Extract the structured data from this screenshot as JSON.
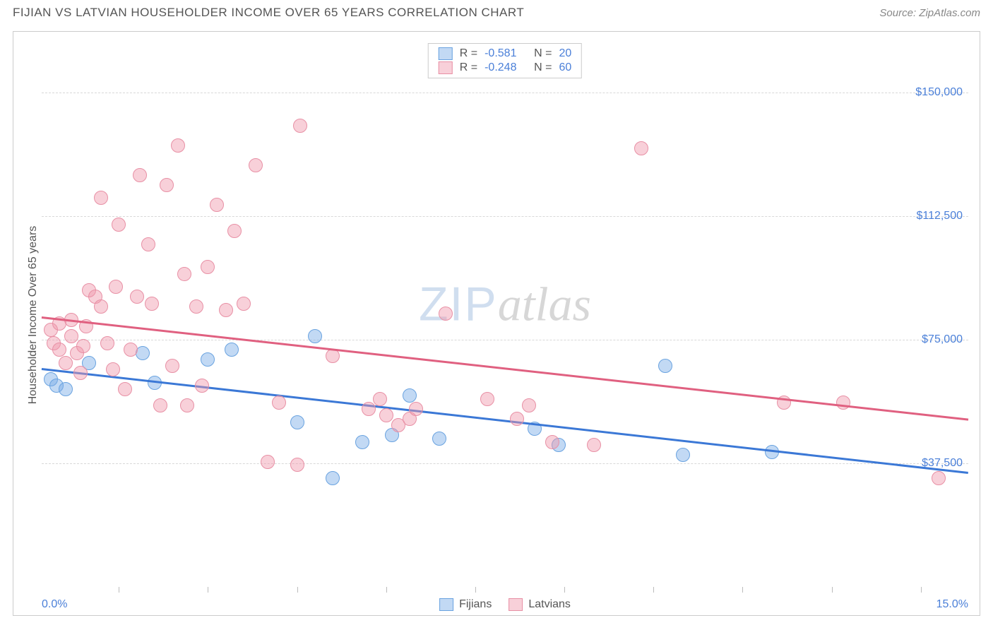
{
  "header": {
    "title": "FIJIAN VS LATVIAN HOUSEHOLDER INCOME OVER 65 YEARS CORRELATION CHART",
    "source_prefix": "Source: ",
    "source_name": "ZipAtlas.com"
  },
  "chart": {
    "type": "scatter",
    "background_color": "#ffffff",
    "border_color": "#cccccc",
    "grid_color": "#d8d8d8",
    "text_color": "#555555",
    "value_color": "#4a7fd8",
    "y_axis_label": "Householder Income Over 65 years",
    "y_min": 0,
    "y_max": 165000,
    "y_ticks": [
      {
        "value": 37500,
        "label": "$37,500"
      },
      {
        "value": 75000,
        "label": "$75,000"
      },
      {
        "value": 112500,
        "label": "$112,500"
      },
      {
        "value": 150000,
        "label": "$150,000"
      }
    ],
    "x_min": -0.3,
    "x_max": 15.3,
    "x_left_label": "0.0%",
    "x_right_label": "15.0%",
    "x_tick_positions": [
      1.0,
      2.5,
      4.0,
      5.5,
      7.0,
      8.5,
      10.0,
      11.5,
      13.0,
      14.5
    ],
    "watermark": {
      "zip": "ZIP",
      "atlas": "atlas"
    },
    "series": [
      {
        "name": "Fijians",
        "fill_color": "rgba(120,170,230,0.45)",
        "stroke_color": "#6aa3e0",
        "line_color": "#3b78d6",
        "marker_radius": 10,
        "r_value": "-0.581",
        "n_value": "20",
        "trend": {
          "x1": -0.3,
          "y1": 66500,
          "x2": 15.3,
          "y2": 35000
        },
        "points": [
          {
            "x": -0.15,
            "y": 63000
          },
          {
            "x": -0.05,
            "y": 61000
          },
          {
            "x": 0.1,
            "y": 60000
          },
          {
            "x": 0.5,
            "y": 68000
          },
          {
            "x": 1.4,
            "y": 71000
          },
          {
            "x": 1.6,
            "y": 62000
          },
          {
            "x": 2.5,
            "y": 69000
          },
          {
            "x": 2.9,
            "y": 72000
          },
          {
            "x": 4.3,
            "y": 76000
          },
          {
            "x": 4.6,
            "y": 33000
          },
          {
            "x": 5.1,
            "y": 44000
          },
          {
            "x": 5.6,
            "y": 46000
          },
          {
            "x": 5.9,
            "y": 58000
          },
          {
            "x": 6.4,
            "y": 45000
          },
          {
            "x": 8.0,
            "y": 48000
          },
          {
            "x": 8.4,
            "y": 43000
          },
          {
            "x": 10.2,
            "y": 67000
          },
          {
            "x": 10.5,
            "y": 40000
          },
          {
            "x": 12.0,
            "y": 41000
          },
          {
            "x": 4.0,
            "y": 50000
          }
        ]
      },
      {
        "name": "Latvians",
        "fill_color": "rgba(240,150,170,0.45)",
        "stroke_color": "#e890a5",
        "line_color": "#e06080",
        "marker_radius": 10,
        "r_value": "-0.248",
        "n_value": "60",
        "trend": {
          "x1": -0.3,
          "y1": 82000,
          "x2": 15.3,
          "y2": 51000
        },
        "points": [
          {
            "x": -0.15,
            "y": 78000
          },
          {
            "x": -0.1,
            "y": 74000
          },
          {
            "x": 0.0,
            "y": 80000
          },
          {
            "x": 0.0,
            "y": 72000
          },
          {
            "x": 0.1,
            "y": 68000
          },
          {
            "x": 0.2,
            "y": 76000
          },
          {
            "x": 0.2,
            "y": 81000
          },
          {
            "x": 0.3,
            "y": 71000
          },
          {
            "x": 0.35,
            "y": 65000
          },
          {
            "x": 0.4,
            "y": 73000
          },
          {
            "x": 0.45,
            "y": 79000
          },
          {
            "x": 0.5,
            "y": 90000
          },
          {
            "x": 0.6,
            "y": 88000
          },
          {
            "x": 0.7,
            "y": 118000
          },
          {
            "x": 0.7,
            "y": 85000
          },
          {
            "x": 0.8,
            "y": 74000
          },
          {
            "x": 0.9,
            "y": 66000
          },
          {
            "x": 0.95,
            "y": 91000
          },
          {
            "x": 1.0,
            "y": 110000
          },
          {
            "x": 1.1,
            "y": 60000
          },
          {
            "x": 1.2,
            "y": 72000
          },
          {
            "x": 1.3,
            "y": 88000
          },
          {
            "x": 1.35,
            "y": 125000
          },
          {
            "x": 1.5,
            "y": 104000
          },
          {
            "x": 1.55,
            "y": 86000
          },
          {
            "x": 1.7,
            "y": 55000
          },
          {
            "x": 1.8,
            "y": 122000
          },
          {
            "x": 1.9,
            "y": 67000
          },
          {
            "x": 2.0,
            "y": 134000
          },
          {
            "x": 2.1,
            "y": 95000
          },
          {
            "x": 2.15,
            "y": 55000
          },
          {
            "x": 2.3,
            "y": 85000
          },
          {
            "x": 2.4,
            "y": 61000
          },
          {
            "x": 2.5,
            "y": 97000
          },
          {
            "x": 2.65,
            "y": 116000
          },
          {
            "x": 2.8,
            "y": 84000
          },
          {
            "x": 2.95,
            "y": 108000
          },
          {
            "x": 3.1,
            "y": 86000
          },
          {
            "x": 3.3,
            "y": 128000
          },
          {
            "x": 3.5,
            "y": 38000
          },
          {
            "x": 3.7,
            "y": 56000
          },
          {
            "x": 4.0,
            "y": 37000
          },
          {
            "x": 4.05,
            "y": 140000
          },
          {
            "x": 4.6,
            "y": 70000
          },
          {
            "x": 5.2,
            "y": 54000
          },
          {
            "x": 5.4,
            "y": 57000
          },
          {
            "x": 5.5,
            "y": 52000
          },
          {
            "x": 5.7,
            "y": 49000
          },
          {
            "x": 5.9,
            "y": 51000
          },
          {
            "x": 6.0,
            "y": 54000
          },
          {
            "x": 6.5,
            "y": 83000
          },
          {
            "x": 7.2,
            "y": 57000
          },
          {
            "x": 7.7,
            "y": 51000
          },
          {
            "x": 7.9,
            "y": 55000
          },
          {
            "x": 8.3,
            "y": 44000
          },
          {
            "x": 9.0,
            "y": 43000
          },
          {
            "x": 9.8,
            "y": 133000
          },
          {
            "x": 12.2,
            "y": 56000
          },
          {
            "x": 13.2,
            "y": 56000
          },
          {
            "x": 14.8,
            "y": 33000
          }
        ]
      }
    ]
  }
}
